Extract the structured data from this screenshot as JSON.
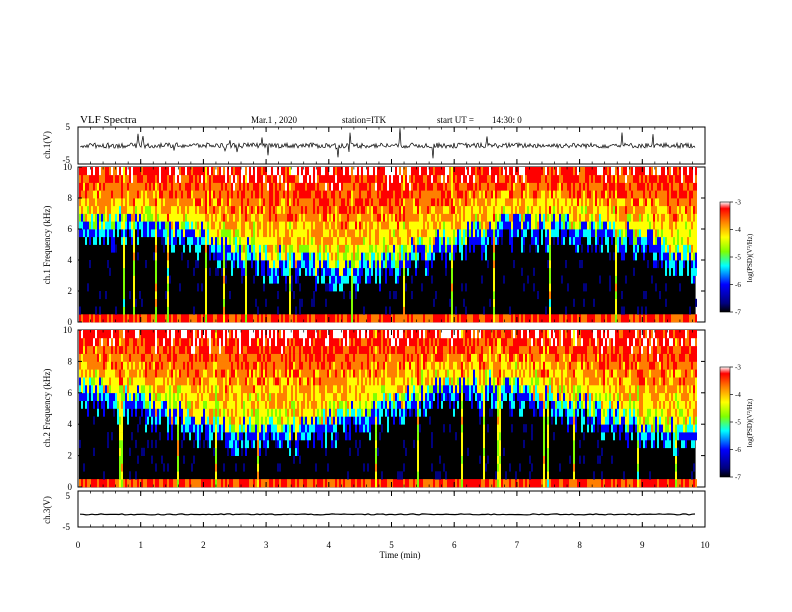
{
  "header": {
    "title": "VLF Spectra",
    "date": "Mar.1 , 2020",
    "station": "station=ITK",
    "start_label": "start UT =",
    "start_time": "14:30: 0"
  },
  "chart_data": [
    {
      "type": "line",
      "name": "ch.1 waveform",
      "ylabel": "ch.1(V)",
      "ylim": [
        -5,
        5
      ],
      "yticks": [
        "5",
        "-5"
      ],
      "baseline_V": 0,
      "noise": "dense impulsive spikes"
    },
    {
      "type": "heatmap",
      "name": "ch.1 spectrogram",
      "ylabel": "ch.1  Frequency (kHz)",
      "ylim": [
        0,
        10
      ],
      "yticks": [
        "0",
        "2",
        "4",
        "6",
        "8",
        "10"
      ],
      "colorbar": {
        "label": "log(PSD)(V²/Hz)",
        "range": [
          -7,
          -3
        ],
        "ticks": [
          "-3",
          "-4",
          "-5",
          "-6",
          "-7"
        ]
      },
      "description": "dense vertical impulsive streaks; strong band 6-10 kHz, black background below ~4 kHz"
    },
    {
      "type": "heatmap",
      "name": "ch.2 spectrogram",
      "ylabel": "ch.2  Frequency (kHz)",
      "ylim": [
        0,
        10
      ],
      "yticks": [
        "0",
        "2",
        "4",
        "6",
        "8",
        "10"
      ],
      "colorbar": {
        "label": "log(PSD)(V²/Hz)",
        "range": [
          -7,
          -3
        ],
        "ticks": [
          "-3",
          "-4",
          "-5",
          "-6",
          "-7"
        ]
      }
    },
    {
      "type": "line",
      "name": "ch.3 waveform",
      "ylabel": "ch.3(V)",
      "ylim": [
        -5,
        5
      ],
      "yticks": [
        "5",
        "-5"
      ],
      "baseline_V": -1.5
    }
  ],
  "xaxis": {
    "label": "Time (min)",
    "range": [
      0,
      10
    ],
    "ticks": [
      "0",
      "1",
      "2",
      "3",
      "4",
      "5",
      "6",
      "7",
      "8",
      "9",
      "10"
    ],
    "data_end": 9.85
  },
  "colors": {
    "background": "#000000",
    "colormap": [
      "#00007f",
      "#0000ff",
      "#00ffff",
      "#7fff00",
      "#ffff00",
      "#ff7f00",
      "#ff0000",
      "#ffffff"
    ]
  }
}
